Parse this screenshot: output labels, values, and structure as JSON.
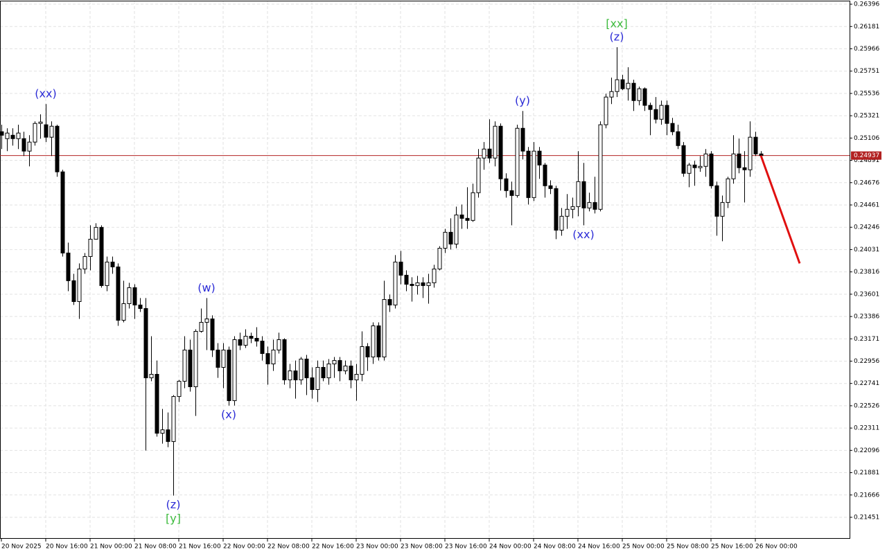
{
  "chart_data": {
    "type": "candlestick",
    "up_color": "#ffffff",
    "down_color": "#000000",
    "grid": true,
    "ylim": [
      0.21244,
      0.26423
    ],
    "yticks": [
      0.26396,
      0.26181,
      0.25966,
      0.25751,
      0.25536,
      0.25321,
      0.25106,
      0.24891,
      0.24676,
      0.24461,
      0.24246,
      0.24031,
      0.23816,
      0.23601,
      0.23386,
      0.23171,
      0.22956,
      0.22741,
      0.22526,
      0.22311,
      0.22096,
      0.21881,
      0.21666,
      0.21451
    ],
    "xlim": [
      -0.25,
      153
    ],
    "xticks": [
      {
        "value": 0,
        "label": "20 Nov 2025"
      },
      {
        "value": 8,
        "label": "20 Nov 16:00"
      },
      {
        "value": 16,
        "label": "21 Nov 00:00"
      },
      {
        "value": 24,
        "label": "21 Nov 08:00"
      },
      {
        "value": 32,
        "label": "21 Nov 16:00"
      },
      {
        "value": 40,
        "label": "22 Nov 00:00"
      },
      {
        "value": 48,
        "label": "22 Nov 08:00"
      },
      {
        "value": 56,
        "label": "22 Nov 16:00"
      },
      {
        "value": 64,
        "label": "23 Nov 00:00"
      },
      {
        "value": 72,
        "label": "23 Nov 08:00"
      },
      {
        "value": 80,
        "label": "23 Nov 16:00"
      },
      {
        "value": 88,
        "label": "24 Nov 00:00"
      },
      {
        "value": 96,
        "label": "24 Nov 08:00"
      },
      {
        "value": 104,
        "label": "24 Nov 16:00"
      },
      {
        "value": 112,
        "label": "25 Nov 00:00"
      },
      {
        "value": 120,
        "label": "25 Nov 08:00"
      },
      {
        "value": 128,
        "label": "25 Nov 16:00"
      },
      {
        "value": 136,
        "label": "26 Nov 00:00"
      }
    ],
    "last_price": 0.24937,
    "last_price_color": "#b22222",
    "ohlc": [
      [
        0.25167,
        0.25234,
        0.25,
        0.25133
      ],
      [
        0.251,
        0.252,
        0.2498,
        0.25154
      ],
      [
        0.25133,
        0.252,
        0.25033,
        0.251
      ],
      [
        0.251,
        0.25234,
        0.25,
        0.25154
      ],
      [
        0.251,
        0.25167,
        0.24933,
        0.2498
      ],
      [
        0.2498,
        0.25133,
        0.24833,
        0.25067
      ],
      [
        0.25067,
        0.25267,
        0.25033,
        0.25247
      ],
      [
        0.25247,
        0.25334,
        0.251,
        0.2526
      ],
      [
        0.25234,
        0.25434,
        0.25067,
        0.25114
      ],
      [
        0.25114,
        0.25267,
        0.24933,
        0.2522
      ],
      [
        0.2522,
        0.25234,
        0.24733,
        0.2478
      ],
      [
        0.2478,
        0.248,
        0.23964,
        0.23998
      ],
      [
        0.23998,
        0.24098,
        0.2363,
        0.23731
      ],
      [
        0.23731,
        0.23798,
        0.23497,
        0.2353
      ],
      [
        0.2353,
        0.23898,
        0.23363,
        0.23844
      ],
      [
        0.23844,
        0.23998,
        0.23798,
        0.23964
      ],
      [
        0.23964,
        0.24265,
        0.23831,
        0.24131
      ],
      [
        0.24131,
        0.24285,
        0.24131,
        0.24245
      ],
      [
        0.24245,
        0.24265,
        0.23664,
        0.23684
      ],
      [
        0.23684,
        0.23964,
        0.2363,
        0.23911
      ],
      [
        0.23911,
        0.23964,
        0.23798,
        0.23864
      ],
      [
        0.23864,
        0.23898,
        0.23296,
        0.2335
      ],
      [
        0.2335,
        0.23731,
        0.2333,
        0.2351
      ],
      [
        0.2351,
        0.23711,
        0.23463,
        0.23664
      ],
      [
        0.23664,
        0.23697,
        0.23363,
        0.23497
      ],
      [
        0.23497,
        0.23564,
        0.2343,
        0.23463
      ],
      [
        0.23463,
        0.23564,
        0.22094,
        0.22795
      ],
      [
        0.22795,
        0.23196,
        0.22762,
        0.22829
      ],
      [
        0.22829,
        0.22962,
        0.22228,
        0.22261
      ],
      [
        0.22261,
        0.22495,
        0.22161,
        0.22294
      ],
      [
        0.22294,
        0.22461,
        0.22127,
        0.22181
      ],
      [
        0.22181,
        0.22629,
        0.2166,
        0.22615
      ],
      [
        0.22615,
        0.22775,
        0.22562,
        0.22762
      ],
      [
        0.22762,
        0.23196,
        0.22695,
        0.23063
      ],
      [
        0.23063,
        0.23163,
        0.22662,
        0.22709
      ],
      [
        0.22709,
        0.23263,
        0.22428,
        0.23243
      ],
      [
        0.23243,
        0.23463,
        0.2323,
        0.2333
      ],
      [
        0.2333,
        0.23564,
        0.23063,
        0.23363
      ],
      [
        0.23363,
        0.23397,
        0.22996,
        0.23063
      ],
      [
        0.23063,
        0.23129,
        0.22795,
        0.22896
      ],
      [
        0.22896,
        0.23129,
        0.22695,
        0.23063
      ],
      [
        0.23063,
        0.23096,
        0.22528,
        0.22575
      ],
      [
        0.22575,
        0.23196,
        0.22528,
        0.23163
      ],
      [
        0.23163,
        0.2323,
        0.23063,
        0.23109
      ],
      [
        0.23109,
        0.23263,
        0.23083,
        0.23196
      ],
      [
        0.23196,
        0.2323,
        0.23129,
        0.23176
      ],
      [
        0.23176,
        0.23283,
        0.23096,
        0.23149
      ],
      [
        0.23149,
        0.23196,
        0.22962,
        0.23029
      ],
      [
        0.23029,
        0.23096,
        0.22729,
        0.22929
      ],
      [
        0.22929,
        0.23163,
        0.22862,
        0.23063
      ],
      [
        0.23063,
        0.2323,
        0.23029,
        0.23163
      ],
      [
        0.23163,
        0.23176,
        0.22729,
        0.22775
      ],
      [
        0.22775,
        0.22929,
        0.22695,
        0.22862
      ],
      [
        0.22862,
        0.22962,
        0.22595,
        0.22775
      ],
      [
        0.22775,
        0.22996,
        0.22729,
        0.22976
      ],
      [
        0.22976,
        0.23016,
        0.22629,
        0.22795
      ],
      [
        0.22795,
        0.22896,
        0.22595,
        0.22682
      ],
      [
        0.22682,
        0.22962,
        0.22562,
        0.22896
      ],
      [
        0.22896,
        0.22962,
        0.22762,
        0.22795
      ],
      [
        0.22795,
        0.22976,
        0.22729,
        0.22929
      ],
      [
        0.22929,
        0.22996,
        0.22795,
        0.22962
      ],
      [
        0.22962,
        0.22996,
        0.22762,
        0.22862
      ],
      [
        0.22862,
        0.22962,
        0.22829,
        0.22909
      ],
      [
        0.22909,
        0.22962,
        0.22695,
        0.22775
      ],
      [
        0.22775,
        0.22929,
        0.22575,
        0.22829
      ],
      [
        0.22829,
        0.23243,
        0.22762,
        0.23096
      ],
      [
        0.23096,
        0.23129,
        0.22862,
        0.22996
      ],
      [
        0.22996,
        0.2333,
        0.22929,
        0.23296
      ],
      [
        0.23296,
        0.2333,
        0.22962,
        0.22996
      ],
      [
        0.22996,
        0.23731,
        0.22962,
        0.2355
      ],
      [
        0.2355,
        0.23597,
        0.2343,
        0.23497
      ],
      [
        0.23497,
        0.23978,
        0.23463,
        0.23911
      ],
      [
        0.23911,
        0.24018,
        0.23697,
        0.23784
      ],
      [
        0.23784,
        0.23831,
        0.2363,
        0.23697
      ],
      [
        0.23697,
        0.23764,
        0.2353,
        0.23684
      ],
      [
        0.23684,
        0.23778,
        0.23597,
        0.23711
      ],
      [
        0.23711,
        0.23764,
        0.23564,
        0.23684
      ],
      [
        0.23684,
        0.23798,
        0.2351,
        0.23711
      ],
      [
        0.23711,
        0.23884,
        0.23664,
        0.23844
      ],
      [
        0.23844,
        0.24064,
        0.23831,
        0.24044
      ],
      [
        0.24044,
        0.24231,
        0.23998,
        0.24198
      ],
      [
        0.24198,
        0.24332,
        0.24031,
        0.24084
      ],
      [
        0.24084,
        0.24445,
        0.24044,
        0.24365
      ],
      [
        0.24365,
        0.24465,
        0.24231,
        0.24332
      ],
      [
        0.24332,
        0.24632,
        0.24231,
        0.24312
      ],
      [
        0.24312,
        0.24666,
        0.24298,
        0.24579
      ],
      [
        0.24579,
        0.25,
        0.24532,
        0.24913
      ],
      [
        0.24913,
        0.25067,
        0.248,
        0.25
      ],
      [
        0.25,
        0.25287,
        0.24866,
        0.24913
      ],
      [
        0.24913,
        0.25267,
        0.24833,
        0.2522
      ],
      [
        0.2522,
        0.25247,
        0.24599,
        0.24713
      ],
      [
        0.24713,
        0.24766,
        0.24532,
        0.24599
      ],
      [
        0.24599,
        0.24686,
        0.24265,
        0.24552
      ],
      [
        0.24552,
        0.25234,
        0.24532,
        0.252
      ],
      [
        0.252,
        0.25367,
        0.249,
        0.2498
      ],
      [
        0.2498,
        0.2502,
        0.24465,
        0.24532
      ],
      [
        0.24532,
        0.25067,
        0.24499,
        0.2498
      ],
      [
        0.2498,
        0.2502,
        0.24713,
        0.24846
      ],
      [
        0.24846,
        0.24866,
        0.24532,
        0.24646
      ],
      [
        0.24646,
        0.24699,
        0.24566,
        0.24619
      ],
      [
        0.24619,
        0.24646,
        0.24131,
        0.24218
      ],
      [
        0.24218,
        0.24432,
        0.24165,
        0.24352
      ],
      [
        0.24352,
        0.24566,
        0.24231,
        0.24419
      ],
      [
        0.24419,
        0.24532,
        0.24332,
        0.24445
      ],
      [
        0.24445,
        0.2498,
        0.24352,
        0.24686
      ],
      [
        0.24686,
        0.24866,
        0.24265,
        0.24432
      ],
      [
        0.24432,
        0.24579,
        0.24399,
        0.24485
      ],
      [
        0.24485,
        0.24733,
        0.24379,
        0.24419
      ],
      [
        0.24419,
        0.25267,
        0.24399,
        0.25234
      ],
      [
        0.25234,
        0.25534,
        0.252,
        0.25501
      ],
      [
        0.25501,
        0.25688,
        0.25434,
        0.25554
      ],
      [
        0.25554,
        0.25982,
        0.25501,
        0.25668
      ],
      [
        0.25668,
        0.25715,
        0.25568,
        0.25581
      ],
      [
        0.25581,
        0.25788,
        0.25467,
        0.25634
      ],
      [
        0.25634,
        0.25668,
        0.25367,
        0.25467
      ],
      [
        0.25467,
        0.25601,
        0.25421,
        0.25581
      ],
      [
        0.25581,
        0.25594,
        0.25367,
        0.25421
      ],
      [
        0.25421,
        0.25447,
        0.25133,
        0.25381
      ],
      [
        0.25381,
        0.25501,
        0.25247,
        0.25287
      ],
      [
        0.25287,
        0.25467,
        0.25234,
        0.25421
      ],
      [
        0.25421,
        0.25467,
        0.25133,
        0.25247
      ],
      [
        0.25247,
        0.253,
        0.25133,
        0.25167
      ],
      [
        0.25167,
        0.25234,
        0.25,
        0.25033
      ],
      [
        0.25033,
        0.25067,
        0.24733,
        0.24766
      ],
      [
        0.24766,
        0.24866,
        0.24632,
        0.24846
      ],
      [
        0.24846,
        0.24886,
        0.24646,
        0.2482
      ],
      [
        0.2482,
        0.24933,
        0.2478,
        0.24833
      ],
      [
        0.24833,
        0.25,
        0.24733,
        0.24953
      ],
      [
        0.24953,
        0.2498,
        0.24619,
        0.24646
      ],
      [
        0.24646,
        0.24686,
        0.24165,
        0.24352
      ],
      [
        0.24352,
        0.24552,
        0.24111,
        0.24485
      ],
      [
        0.24485,
        0.24733,
        0.24432,
        0.24713
      ],
      [
        0.24713,
        0.25133,
        0.24666,
        0.24953
      ],
      [
        0.24953,
        0.251,
        0.24766,
        0.2482
      ],
      [
        0.2482,
        0.2498,
        0.24485,
        0.248
      ],
      [
        0.248,
        0.25267,
        0.24733,
        0.25114
      ],
      [
        0.25114,
        0.25167,
        0.24933,
        0.24953
      ],
      [
        0.24953,
        0.2498,
        0.24926,
        0.24937
      ]
    ],
    "annotations": [
      {
        "text": "(xx)",
        "x": 8,
        "side": "above",
        "color": "#2b2bd6"
      },
      {
        "text": "(z)",
        "x": 31,
        "side": "below",
        "color": "#2b2bd6"
      },
      {
        "text": "[y]",
        "x": 31,
        "side": "below2",
        "color": "#3dbb3d"
      },
      {
        "text": "(w)",
        "x": 37,
        "side": "above",
        "color": "#2b2bd6"
      },
      {
        "text": "(x)",
        "x": 41,
        "side": "below",
        "color": "#2b2bd6"
      },
      {
        "text": "(y)",
        "x": 94,
        "side": "above",
        "color": "#2b2bd6"
      },
      {
        "text": "(xx)",
        "x": 105,
        "side": "below",
        "color": "#2b2bd6"
      },
      {
        "text": "(z)",
        "x": 111,
        "side": "above",
        "color": "#2b2bd6"
      },
      {
        "text": "[xx]",
        "x": 111,
        "side": "above2",
        "color": "#3dbb3d"
      }
    ],
    "forecast": {
      "color": "#e01010",
      "x": [
        137,
        144
      ],
      "values": [
        0.24937,
        0.23898
      ]
    }
  }
}
